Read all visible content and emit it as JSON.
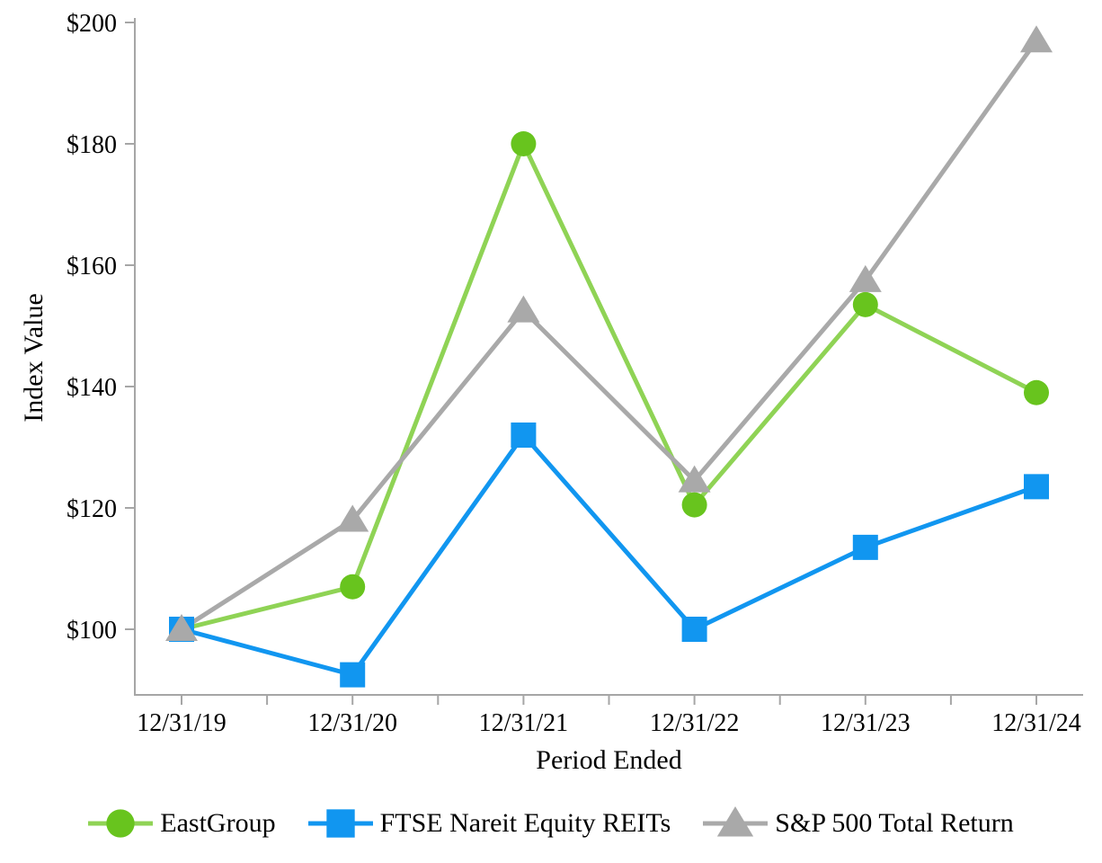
{
  "chart_data": {
    "type": "line",
    "title": "",
    "xlabel": "Period Ended",
    "ylabel": "Index Value",
    "categories": [
      "12/31/19",
      "12/31/20",
      "12/31/21",
      "12/31/22",
      "12/31/23",
      "12/31/24"
    ],
    "series": [
      {
        "name": "EastGroup",
        "marker": "circle",
        "line_color": "#8FD355",
        "marker_color": "#68C41E",
        "values": [
          100,
          107,
          180,
          120.5,
          153.5,
          139
        ]
      },
      {
        "name": "FTSE Nareit Equity REITs",
        "marker": "square",
        "line_color": "#1196F0",
        "marker_color": "#1196F0",
        "values": [
          100,
          92.5,
          132,
          100,
          113.5,
          123.5
        ]
      },
      {
        "name": "S&P 500 Total Return",
        "marker": "triangle",
        "line_color": "#A9A9A9",
        "marker_color": "#A9A9A9",
        "values": [
          100,
          118,
          152.5,
          124.5,
          157.5,
          197
        ]
      }
    ],
    "y_ticks": [
      100,
      120,
      140,
      160,
      180,
      200
    ],
    "y_tick_labels": [
      "$100",
      "$120",
      "$140",
      "$160",
      "$180",
      "$200"
    ],
    "ylim": [
      89,
      200
    ],
    "grid": false,
    "legend_position": "bottom",
    "axis_color": "#A6A6A6",
    "text_color": "#000000"
  }
}
